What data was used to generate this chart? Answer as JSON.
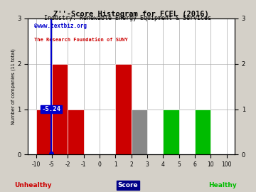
{
  "title": "Z''-Score Histogram for FCEL (2016)",
  "subtitle": "Industry: Renewable Energy Equipment & Services",
  "watermark1": "©www.textbiz.org",
  "watermark2": "The Research Foundation of SUNY",
  "xlabel": "Score",
  "ylabel": "Number of companies (11 total)",
  "unhealthy_label": "Unhealthy",
  "healthy_label": "Healthy",
  "bins": [
    -10,
    -5,
    -2,
    -1,
    0,
    1,
    2,
    3,
    4,
    5,
    6,
    10,
    100
  ],
  "heights": [
    1,
    2,
    1,
    0,
    0,
    2,
    1,
    0,
    1,
    0,
    1,
    0
  ],
  "bar_colors": [
    "#cc0000",
    "#cc0000",
    "#cc0000",
    "#cc0000",
    "#cc0000",
    "#cc0000",
    "#888888",
    "#888888",
    "#00bb00",
    "#00bb00",
    "#00bb00",
    "#00bb00"
  ],
  "fcel_score": -5.24,
  "fcel_label": "-5.24",
  "ylim": [
    0,
    3
  ],
  "yticks": [
    0,
    1,
    2,
    3
  ],
  "fig_bg_color": "#d4d0c8",
  "plot_bg_color": "#ffffff",
  "title_color": "#000000",
  "subtitle_color": "#000000",
  "watermark1_color": "#0000cc",
  "watermark2_color": "#cc0000",
  "unhealthy_color": "#cc0000",
  "healthy_color": "#00bb00",
  "score_box_facecolor": "#000088",
  "score_box_edgecolor": "#000088",
  "blue_line_color": "#0000cc",
  "xtick_labels": [
    "-10",
    "-5",
    "-2",
    "-1",
    "0",
    "1",
    "2",
    "3",
    "4",
    "5",
    "6",
    "10",
    "100"
  ],
  "xtick_positions": [
    -10,
    -5,
    -2,
    -1,
    0,
    1,
    2,
    3,
    4,
    5,
    6,
    10,
    100
  ]
}
